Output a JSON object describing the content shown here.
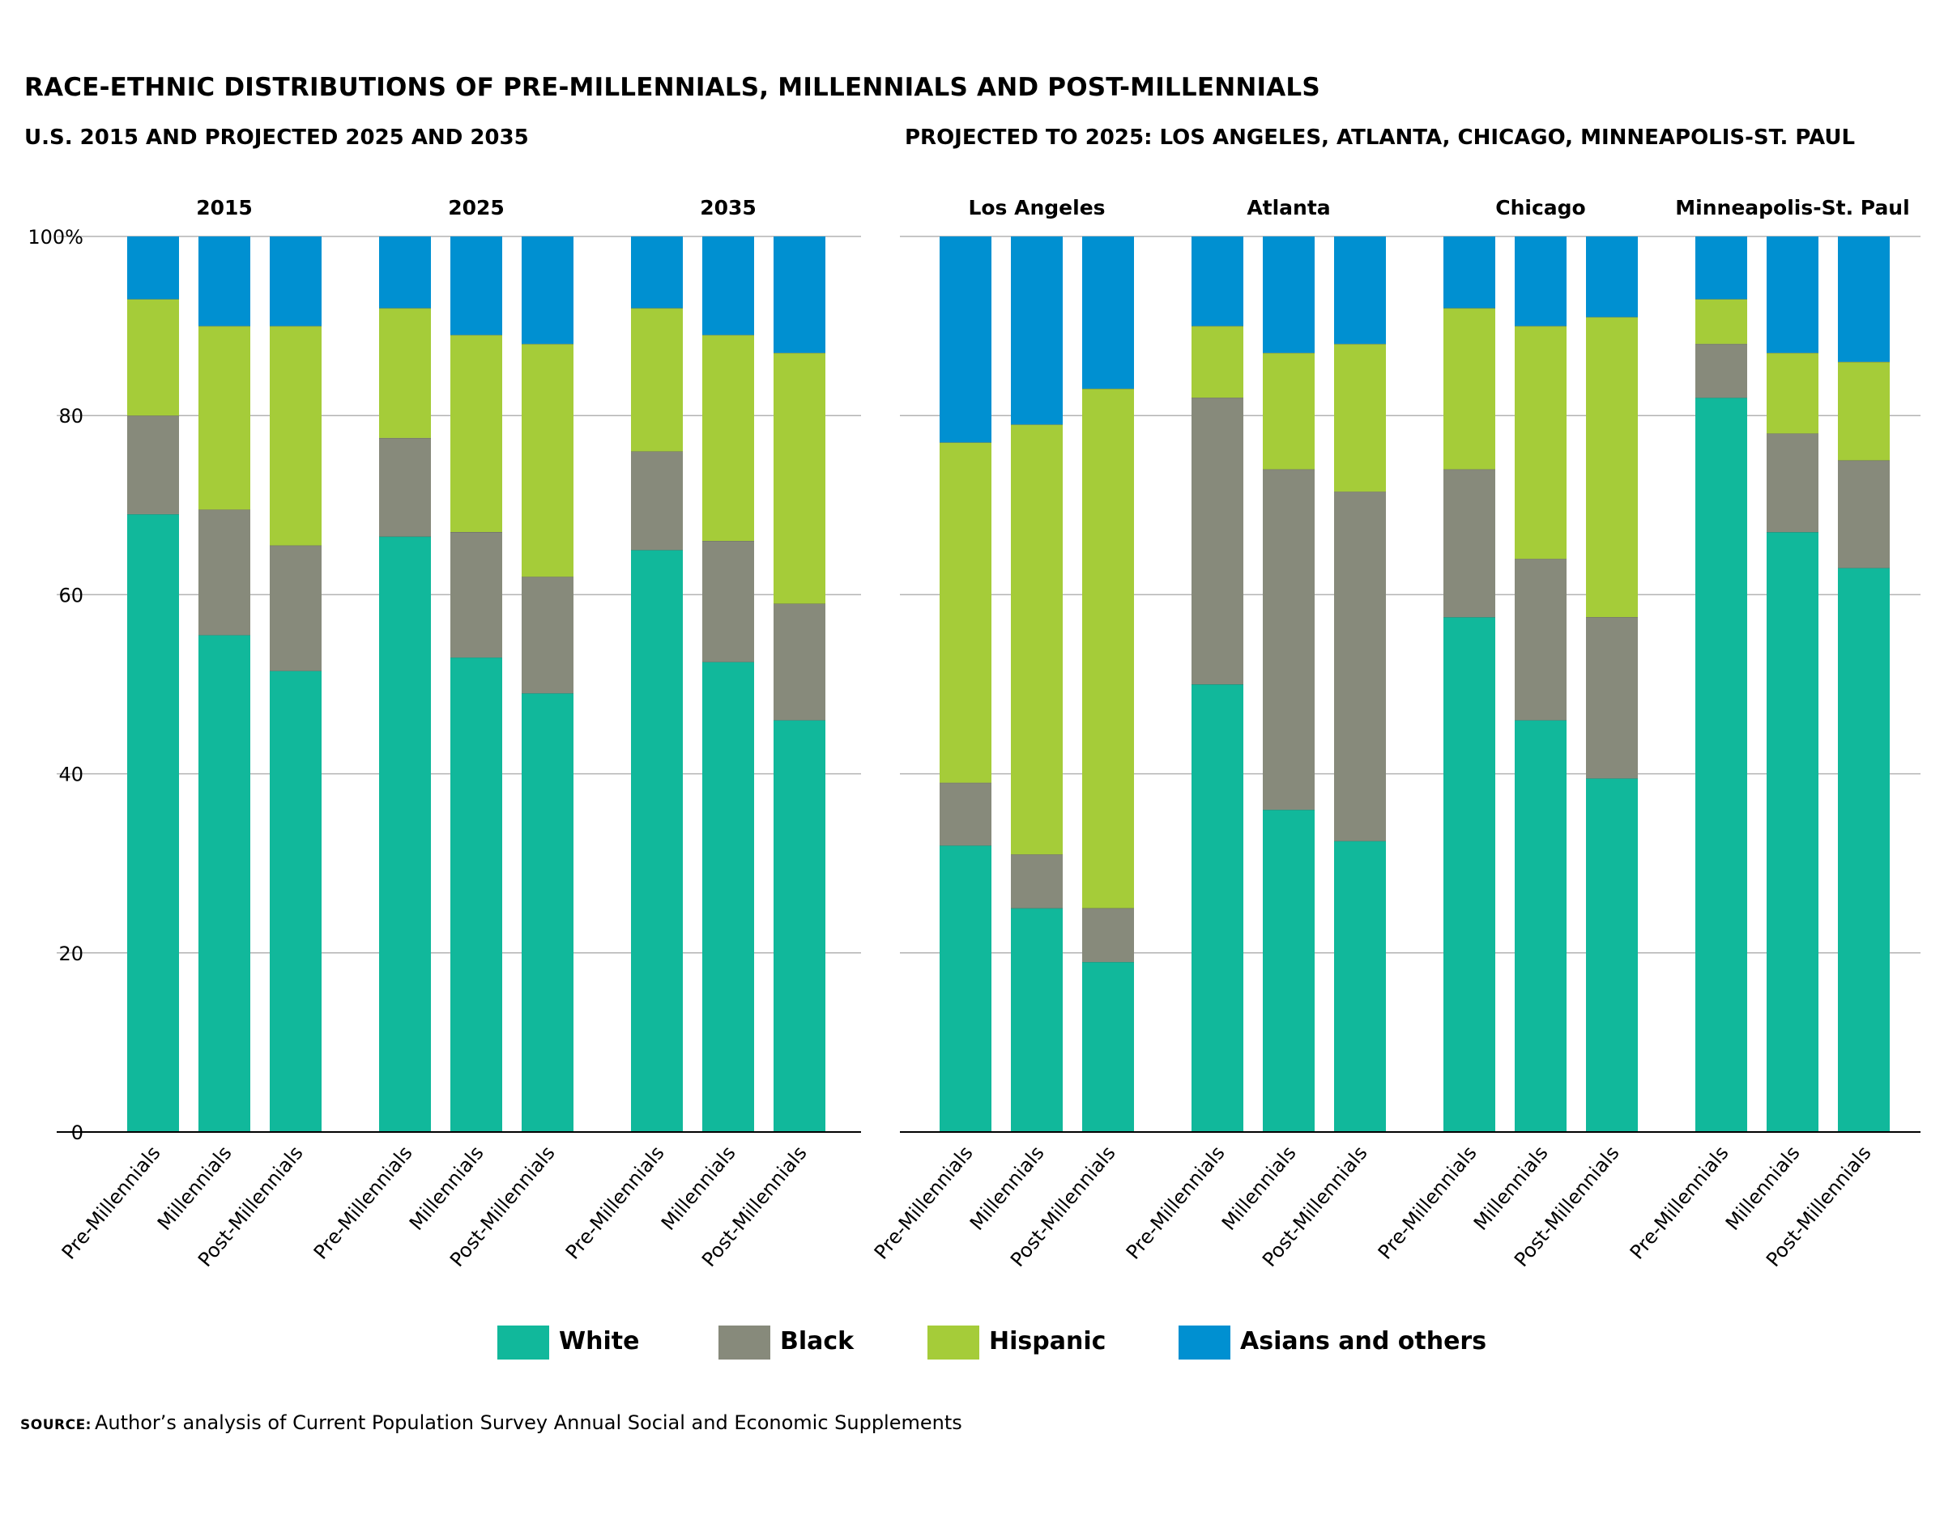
{
  "title": "RACE-ETHNIC DISTRIBUTIONS OF PRE-MILLENNIALS, MILLENNIALS AND POST-MILLENNIALS",
  "panel_left_title": "U.S. 2015 AND PROJECTED 2025 AND 2035",
  "panel_right_title": "PROJECTED TO 2025: LOS ANGELES, ATLANTA, CHICAGO, MINNEAPOLIS-ST. PAUL",
  "source_label": "SOURCE:",
  "source_text": "Author’s analysis of Current Population Survey Annual Social and Economic Supplements",
  "colors": {
    "White": "#11b89b",
    "Black": "#878a7b",
    "Hispanic": "#a5cc39",
    "Asians and others": "#0090d1"
  },
  "legend": [
    "White",
    "Black",
    "Hispanic",
    "Asians and others"
  ],
  "chart_data": [
    {
      "type": "bar",
      "stacked": true,
      "ylim": [
        0,
        100
      ],
      "yticks": [
        "100%",
        "80",
        "60",
        "40",
        "20",
        "0"
      ],
      "series_names": [
        "White",
        "Black",
        "Hispanic",
        "Asians and others"
      ],
      "groups": [
        {
          "label": "2015",
          "bars": [
            {
              "category": "Pre-Millennials",
              "values": [
                69,
                11,
                13,
                7
              ]
            },
            {
              "category": "Millennials",
              "values": [
                55.5,
                14,
                20.5,
                10
              ]
            },
            {
              "category": "Post-Millennials",
              "values": [
                51.5,
                14,
                24.5,
                10
              ]
            }
          ]
        },
        {
          "label": "2025",
          "bars": [
            {
              "category": "Pre-Millennials",
              "values": [
                66.5,
                11,
                14.5,
                8
              ]
            },
            {
              "category": "Millennials",
              "values": [
                53,
                14,
                22,
                11
              ]
            },
            {
              "category": "Post-Millennials",
              "values": [
                49,
                13,
                26,
                12
              ]
            }
          ]
        },
        {
          "label": "2035",
          "bars": [
            {
              "category": "Pre-Millennials",
              "values": [
                65,
                11,
                16,
                8
              ]
            },
            {
              "category": "Millennials",
              "values": [
                52.5,
                13.5,
                23,
                11
              ]
            },
            {
              "category": "Post-Millennials",
              "values": [
                46,
                13,
                28,
                13
              ]
            }
          ]
        }
      ]
    },
    {
      "type": "bar",
      "stacked": true,
      "ylim": [
        0,
        100
      ],
      "series_names": [
        "White",
        "Black",
        "Hispanic",
        "Asians and others"
      ],
      "groups": [
        {
          "label": "Los Angeles",
          "bars": [
            {
              "category": "Pre-Millennials",
              "values": [
                32,
                7,
                38,
                23
              ]
            },
            {
              "category": "Millennials",
              "values": [
                25,
                6,
                48,
                21
              ]
            },
            {
              "category": "Post-Millennials",
              "values": [
                19,
                6,
                58,
                17
              ]
            }
          ]
        },
        {
          "label": "Atlanta",
          "bars": [
            {
              "category": "Pre-Millennials",
              "values": [
                50,
                32,
                8,
                10
              ]
            },
            {
              "category": "Millennials",
              "values": [
                36,
                38,
                13,
                13
              ]
            },
            {
              "category": "Post-Millennials",
              "values": [
                32.5,
                39,
                16.5,
                12
              ]
            }
          ]
        },
        {
          "label": "Chicago",
          "bars": [
            {
              "category": "Pre-Millennials",
              "values": [
                57.5,
                16.5,
                18,
                8
              ]
            },
            {
              "category": "Millennials",
              "values": [
                46,
                18,
                26,
                10
              ]
            },
            {
              "category": "Post-Millennials",
              "values": [
                39.5,
                18,
                33.5,
                9
              ]
            }
          ]
        },
        {
          "label": "Minneapolis-St. Paul",
          "bars": [
            {
              "category": "Pre-Millennials",
              "values": [
                82,
                6,
                5,
                7
              ]
            },
            {
              "category": "Millennials",
              "values": [
                67,
                11,
                9,
                13
              ]
            },
            {
              "category": "Post-Millennials",
              "values": [
                63,
                12,
                11,
                14
              ]
            }
          ]
        }
      ]
    }
  ]
}
